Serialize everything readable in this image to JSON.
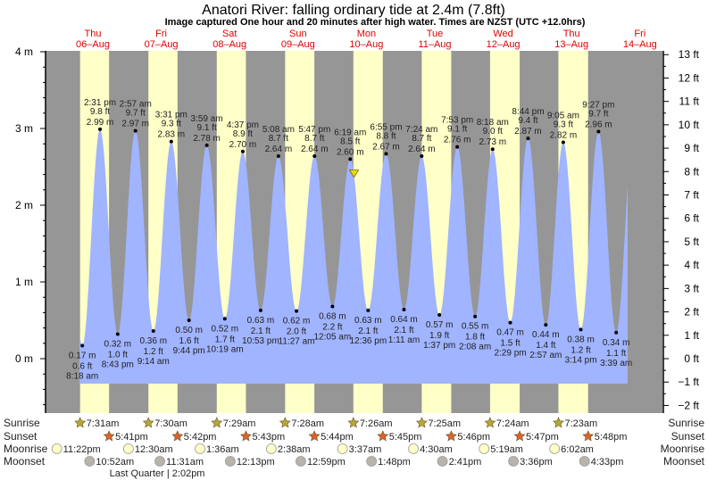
{
  "chart_data": {
    "type": "area",
    "title": "Anatori River: falling  ordinary tide at 2.4m (7.8ft)",
    "subtitle": "Image captured One hour and 20 minutes after high water. Times are NZST (UTC +12.0hrs)",
    "ylabel_left_unit": "m",
    "ylabel_right_unit": "ft",
    "ylim_m": [
      -0.6,
      4
    ],
    "ylim_ft": [
      -2,
      13
    ],
    "left_ticks": [
      "4 m",
      "3 m",
      "2 m",
      "1 m",
      "0 m"
    ],
    "right_ticks": [
      "13 ft",
      "12 ft",
      "11 ft",
      "10 ft",
      "9 ft",
      "8 ft",
      "7 ft",
      "6 ft",
      "5 ft",
      "4 ft",
      "3 ft",
      "2 ft",
      "1 ft",
      "0 ft",
      "−1 ft",
      "−2 ft"
    ],
    "days": [
      {
        "name": "Thu",
        "date": "06–Aug"
      },
      {
        "name": "Fri",
        "date": "07–Aug"
      },
      {
        "name": "Sat",
        "date": "08–Aug"
      },
      {
        "name": "Sun",
        "date": "09–Aug"
      },
      {
        "name": "Mon",
        "date": "10–Aug"
      },
      {
        "name": "Tue",
        "date": "11–Aug"
      },
      {
        "name": "Wed",
        "date": "12–Aug"
      },
      {
        "name": "Thu",
        "date": "13–Aug"
      },
      {
        "name": "Fri",
        "date": "14–Aug"
      }
    ],
    "current": {
      "day": 10,
      "time": "7:39 am",
      "height_m": 2.4,
      "height_ft": 7.8
    },
    "extremes": [
      {
        "day": 6,
        "time": "8:18 am",
        "m": "0.17 m",
        "ft": "0.6 ft",
        "type": "low"
      },
      {
        "day": 6,
        "time": "2:31 pm",
        "m": "2.99 m",
        "ft": "9.8 ft",
        "type": "high"
      },
      {
        "day": 6,
        "time": "8:43 pm",
        "m": "0.32 m",
        "ft": "1.0 ft",
        "type": "low"
      },
      {
        "day": 7,
        "time": "2:57 am",
        "m": "2.97 m",
        "ft": "9.7 ft",
        "type": "high"
      },
      {
        "day": 7,
        "time": "9:14 am",
        "m": "0.36 m",
        "ft": "1.2 ft",
        "type": "low"
      },
      {
        "day": 7,
        "time": "3:31 pm",
        "m": "2.83 m",
        "ft": "9.3 ft",
        "type": "high"
      },
      {
        "day": 7,
        "time": "9:44 pm",
        "m": "0.50 m",
        "ft": "1.6 ft",
        "type": "low"
      },
      {
        "day": 8,
        "time": "3:59 am",
        "m": "2.78 m",
        "ft": "9.1 ft",
        "type": "high"
      },
      {
        "day": 8,
        "time": "10:19 am",
        "m": "0.52 m",
        "ft": "1.7 ft",
        "type": "low"
      },
      {
        "day": 8,
        "time": "4:37 pm",
        "m": "2.70 m",
        "ft": "8.9 ft",
        "type": "high"
      },
      {
        "day": 8,
        "time": "10:53 pm",
        "m": "0.63 m",
        "ft": "2.1 ft",
        "type": "low"
      },
      {
        "day": 9,
        "time": "5:08 am",
        "m": "2.64 m",
        "ft": "8.7 ft",
        "type": "high"
      },
      {
        "day": 9,
        "time": "11:27 am",
        "m": "0.62 m",
        "ft": "2.0 ft",
        "type": "low"
      },
      {
        "day": 9,
        "time": "5:47 pm",
        "m": "2.64 m",
        "ft": "8.7 ft",
        "type": "high"
      },
      {
        "day": 10,
        "time": "12:05 am",
        "m": "0.68 m",
        "ft": "2.2 ft",
        "type": "low"
      },
      {
        "day": 10,
        "time": "6:19 am",
        "m": "2.60 m",
        "ft": "8.5 ft",
        "type": "high"
      },
      {
        "day": 10,
        "time": "12:36 pm",
        "m": "0.63 m",
        "ft": "2.1 ft",
        "type": "low"
      },
      {
        "day": 10,
        "time": "6:55 pm",
        "m": "2.67 m",
        "ft": "8.8 ft",
        "type": "high"
      },
      {
        "day": 11,
        "time": "1:11 am",
        "m": "0.64 m",
        "ft": "2.1 ft",
        "type": "low"
      },
      {
        "day": 11,
        "time": "7:24 am",
        "m": "2.64 m",
        "ft": "8.7 ft",
        "type": "high"
      },
      {
        "day": 11,
        "time": "1:37 pm",
        "m": "0.57 m",
        "ft": "1.9 ft",
        "type": "low"
      },
      {
        "day": 11,
        "time": "7:53 pm",
        "m": "2.76 m",
        "ft": "9.1 ft",
        "type": "high"
      },
      {
        "day": 12,
        "time": "2:08 am",
        "m": "0.55 m",
        "ft": "1.8 ft",
        "type": "low"
      },
      {
        "day": 12,
        "time": "8:18 am",
        "m": "2.73 m",
        "ft": "9.0 ft",
        "type": "high"
      },
      {
        "day": 12,
        "time": "2:29 pm",
        "m": "0.47 m",
        "ft": "1.5 ft",
        "type": "low"
      },
      {
        "day": 12,
        "time": "8:44 pm",
        "m": "2.87 m",
        "ft": "9.4 ft",
        "type": "high"
      },
      {
        "day": 13,
        "time": "2:57 am",
        "m": "0.44 m",
        "ft": "1.4 ft",
        "type": "low"
      },
      {
        "day": 13,
        "time": "9:05 am",
        "m": "2.82 m",
        "ft": "9.3 ft",
        "type": "high"
      },
      {
        "day": 13,
        "time": "3:14 pm",
        "m": "0.38 m",
        "ft": "1.2 ft",
        "type": "low"
      },
      {
        "day": 13,
        "time": "9:27 pm",
        "m": "2.96 m",
        "ft": "9.7 ft",
        "type": "high"
      },
      {
        "day": 14,
        "time": "3:39 am",
        "m": "0.34 m",
        "ft": "1.1 ft",
        "type": "low"
      }
    ],
    "rows": {
      "sunrise_label": "Sunrise",
      "sunset_label": "Sunset",
      "moonrise_label": "Moonrise",
      "moonset_label": "Moonset",
      "sunrise": [
        {
          "day": 6,
          "time": "7:31am"
        },
        {
          "day": 7,
          "time": "7:30am"
        },
        {
          "day": 8,
          "time": "7:29am"
        },
        {
          "day": 9,
          "time": "7:28am"
        },
        {
          "day": 10,
          "time": "7:26am"
        },
        {
          "day": 11,
          "time": "7:25am"
        },
        {
          "day": 12,
          "time": "7:24am"
        },
        {
          "day": 13,
          "time": "7:23am"
        }
      ],
      "sunset": [
        {
          "day": 6,
          "time": "5:41pm"
        },
        {
          "day": 7,
          "time": "5:42pm"
        },
        {
          "day": 8,
          "time": "5:43pm"
        },
        {
          "day": 9,
          "time": "5:44pm"
        },
        {
          "day": 10,
          "time": "5:45pm"
        },
        {
          "day": 11,
          "time": "5:46pm"
        },
        {
          "day": 12,
          "time": "5:47pm"
        },
        {
          "day": 13,
          "time": "5:48pm"
        }
      ],
      "moonrise": [
        {
          "day": 5,
          "time": "11:22pm"
        },
        {
          "day": 7,
          "time": "12:30am"
        },
        {
          "day": 8,
          "time": "1:36am"
        },
        {
          "day": 9,
          "time": "2:38am"
        },
        {
          "day": 10,
          "time": "3:37am"
        },
        {
          "day": 11,
          "time": "4:30am"
        },
        {
          "day": 12,
          "time": "5:19am"
        },
        {
          "day": 13,
          "time": "6:02am"
        }
      ],
      "moonset": [
        {
          "day": 6,
          "time": "10:52am"
        },
        {
          "day": 7,
          "time": "11:31am"
        },
        {
          "day": 8,
          "time": "12:13pm"
        },
        {
          "day": 9,
          "time": "12:59pm"
        },
        {
          "day": 10,
          "time": "1:48pm"
        },
        {
          "day": 11,
          "time": "2:41pm"
        },
        {
          "day": 12,
          "time": "3:36pm"
        },
        {
          "day": 13,
          "time": "4:33pm"
        }
      ],
      "moon_phase": {
        "day": 7,
        "time": "2:02pm",
        "text": "Last Quarter | 2:02pm"
      }
    },
    "colors": {
      "day": "#ffffc8",
      "night": "#969696",
      "water": "#a0b4ff",
      "daylabel": "#e00000",
      "sunrise": "#b4a838",
      "sunset": "#d8642c",
      "moonrise": "#ffffc8",
      "moonset": "#b8b4ac"
    }
  }
}
